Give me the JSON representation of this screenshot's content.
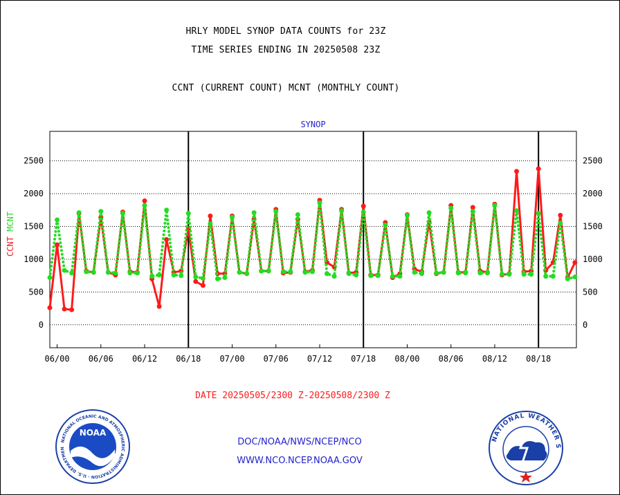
{
  "header": {
    "title_line1": "HRLY MODEL SYNOP DATA COUNTS for 23Z",
    "title_line2": "TIME SERIES ENDING IN 20250508 23Z",
    "title_line3": "CCNT (CURRENT COUNT) MCNT (MONTHLY COUNT)"
  },
  "footer": {
    "date_range": "DATE 20250505/2300 Z-20250508/2300 Z",
    "links": [
      "DOC/NOAA/NWS/NCEP/NCO",
      "WWW.NCO.NCEP.NOAA.GOV"
    ],
    "logos": [
      "noaa-logo",
      "national-weather-service-logo"
    ],
    "logo_text": [
      "NOAA",
      "NATIONAL WEATHER SERVICE"
    ]
  },
  "colors": {
    "ccnt": "#ff1a1a",
    "mcnt": "#22dd22",
    "link": "#2222cc",
    "frame": "#000000"
  },
  "chart_data": {
    "type": "line",
    "title": "SYNOP",
    "ylabel_parts": [
      {
        "text": "CCNT",
        "color": "#ff1a1a"
      },
      {
        "text": "MCNT",
        "color": "#22dd22"
      }
    ],
    "xlim": [
      -1,
      71.2
    ],
    "ylim": [
      -350,
      2950
    ],
    "yticks": [
      0,
      500,
      1000,
      1500,
      2000,
      2500
    ],
    "xticks": [
      {
        "x": 0,
        "label": "06/00"
      },
      {
        "x": 6,
        "label": "06/06"
      },
      {
        "x": 12,
        "label": "06/12"
      },
      {
        "x": 18,
        "label": "06/18"
      },
      {
        "x": 24,
        "label": "07/00"
      },
      {
        "x": 30,
        "label": "07/06"
      },
      {
        "x": 36,
        "label": "07/12"
      },
      {
        "x": 42,
        "label": "07/18"
      },
      {
        "x": 48,
        "label": "08/00"
      },
      {
        "x": 54,
        "label": "08/06"
      },
      {
        "x": 60,
        "label": "08/12"
      },
      {
        "x": 66,
        "label": "08/18"
      }
    ],
    "vlines": [
      18,
      42,
      66
    ],
    "grid": true,
    "series": [
      {
        "name": "CCNT",
        "color": "#ff1a1a",
        "style": "solid",
        "x": [
          -1,
          0,
          1,
          2,
          3,
          4,
          5,
          6,
          7,
          8,
          9,
          10,
          11,
          12,
          13,
          14,
          15,
          16,
          17,
          18,
          19,
          20,
          21,
          22,
          23,
          24,
          25,
          26,
          27,
          28,
          29,
          30,
          31,
          32,
          33,
          34,
          35,
          36,
          37,
          38,
          39,
          40,
          41,
          42,
          43,
          44,
          45,
          46,
          47,
          48,
          49,
          50,
          51,
          52,
          53,
          54,
          55,
          56,
          57,
          58,
          59,
          60,
          61,
          62,
          63,
          64,
          65,
          66,
          67,
          68,
          69,
          70,
          71
        ],
        "values": [
          260,
          1220,
          240,
          230,
          1700,
          820,
          800,
          1640,
          800,
          760,
          1720,
          810,
          800,
          1890,
          700,
          280,
          1300,
          800,
          820,
          1460,
          660,
          600,
          1660,
          780,
          780,
          1660,
          800,
          780,
          1610,
          820,
          820,
          1760,
          790,
          800,
          1610,
          810,
          830,
          1900,
          950,
          880,
          1760,
          790,
          800,
          1810,
          760,
          760,
          1560,
          720,
          780,
          1680,
          850,
          810,
          1570,
          780,
          800,
          1820,
          800,
          800,
          1790,
          820,
          800,
          1840,
          760,
          780,
          2340,
          810,
          820,
          2380,
          830,
          950,
          1670,
          720,
          950
        ]
      },
      {
        "name": "MCNT",
        "color": "#22dd22",
        "style": "dotted",
        "x": [
          -1,
          0,
          1,
          2,
          3,
          4,
          5,
          6,
          7,
          8,
          9,
          10,
          11,
          12,
          13,
          14,
          15,
          16,
          17,
          18,
          19,
          20,
          21,
          22,
          23,
          24,
          25,
          26,
          27,
          28,
          29,
          30,
          31,
          32,
          33,
          34,
          35,
          36,
          37,
          38,
          39,
          40,
          41,
          42,
          43,
          44,
          45,
          46,
          47,
          48,
          49,
          50,
          51,
          52,
          53,
          54,
          55,
          56,
          57,
          58,
          59,
          60,
          61,
          62,
          63,
          64,
          65,
          66,
          67,
          68,
          69,
          70,
          71
        ],
        "values": [
          720,
          1600,
          830,
          790,
          1710,
          810,
          800,
          1730,
          800,
          790,
          1700,
          790,
          790,
          1820,
          740,
          760,
          1750,
          760,
          750,
          1700,
          730,
          710,
          1540,
          700,
          720,
          1640,
          800,
          780,
          1710,
          820,
          820,
          1730,
          810,
          810,
          1680,
          800,
          810,
          1860,
          780,
          740,
          1740,
          780,
          760,
          1720,
          750,
          750,
          1520,
          740,
          740,
          1670,
          800,
          780,
          1710,
          790,
          800,
          1780,
          790,
          790,
          1730,
          790,
          790,
          1820,
          770,
          770,
          1740,
          770,
          770,
          1700,
          740,
          740,
          1550,
          700,
          730
        ]
      }
    ]
  }
}
